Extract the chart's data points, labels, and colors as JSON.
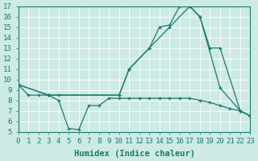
{
  "bg_color": "#cdeae5",
  "grid_color": "#ffffff",
  "line_color": "#1a7a6e",
  "xlabel": "Humidex (Indice chaleur)",
  "xlim": [
    0,
    23
  ],
  "ylim": [
    5,
    17
  ],
  "xticks": [
    0,
    1,
    2,
    3,
    4,
    5,
    6,
    7,
    8,
    9,
    10,
    11,
    12,
    13,
    14,
    15,
    16,
    17,
    18,
    19,
    20,
    21,
    22,
    23
  ],
  "yticks": [
    5,
    6,
    7,
    8,
    9,
    10,
    11,
    12,
    13,
    14,
    15,
    16,
    17
  ],
  "xlabel_fontsize": 7.5,
  "tick_fontsize": 6.5,
  "series1_x": [
    0,
    1,
    2,
    3,
    4,
    5,
    6,
    7,
    8,
    9,
    10,
    11,
    12,
    13,
    14,
    15,
    16,
    17,
    18,
    19,
    20,
    21,
    22,
    23
  ],
  "series1_y": [
    9.5,
    8.5,
    8.5,
    8.5,
    8.0,
    5.3,
    5.2,
    7.5,
    7.5,
    8.2,
    8.2,
    8.2,
    8.2,
    8.2,
    8.2,
    8.2,
    8.2,
    8.2,
    8.0,
    7.8,
    7.5,
    7.2,
    7.0,
    6.5
  ],
  "series2_x": [
    0,
    3,
    4,
    10,
    11,
    13,
    14,
    15,
    16,
    17,
    18,
    20,
    22,
    23
  ],
  "series2_y": [
    9.5,
    8.5,
    8.5,
    8.5,
    11.0,
    13.0,
    15.0,
    15.2,
    17.0,
    17.0,
    16.0,
    9.2,
    7.0,
    6.5
  ],
  "series3_x": [
    0,
    3,
    10,
    11,
    13,
    15,
    17,
    18,
    19,
    20,
    22,
    23
  ],
  "series3_y": [
    9.5,
    8.5,
    8.5,
    11.0,
    13.0,
    15.0,
    17.0,
    16.0,
    13.0,
    13.0,
    7.0,
    6.5
  ]
}
